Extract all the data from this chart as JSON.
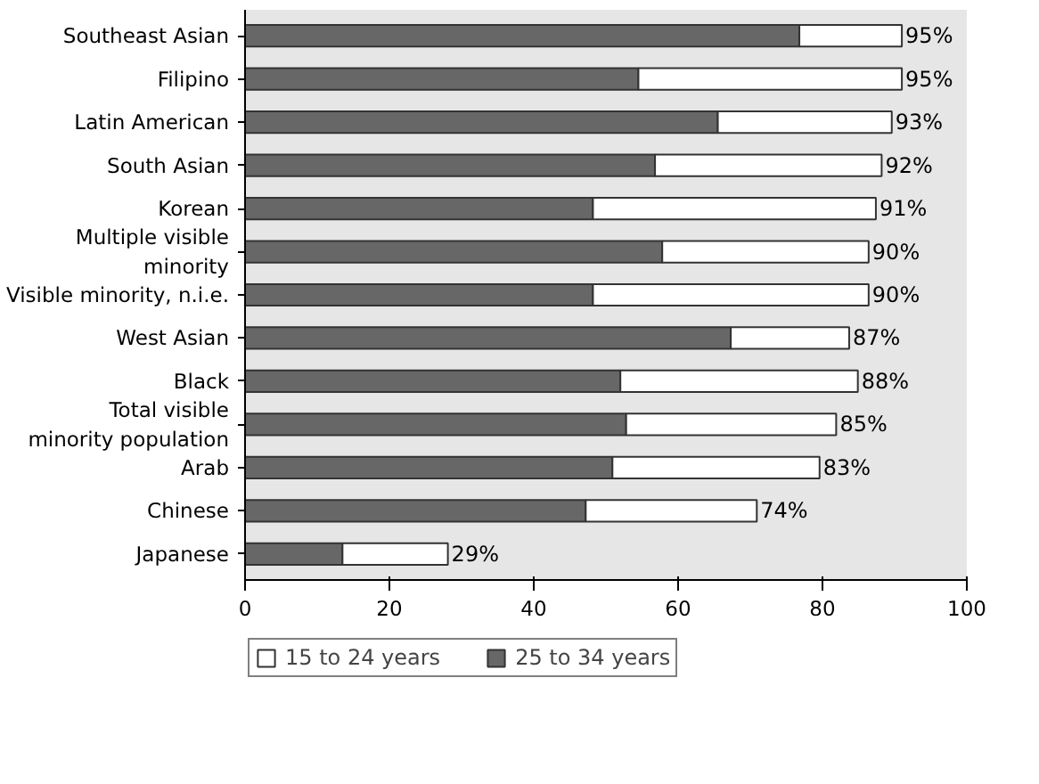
{
  "chart_data": {
    "type": "bar",
    "orientation": "horizontal",
    "stacked": true,
    "categories": [
      "Southeast Asian",
      "Filipino",
      "Latin American",
      "South Asian",
      "Korean",
      "Multiple visible\nminority",
      "Visible minority, n.i.e.",
      "West Asian",
      "Black",
      "Total visible\nminority population",
      "Arab",
      "Chinese",
      "Japanese"
    ],
    "series": [
      {
        "name": "25 to 34 years",
        "color": "#676767",
        "values": [
          76.8,
          54.5,
          65.5,
          56.8,
          48.2,
          57.8,
          48.2,
          67.3,
          52.0,
          52.8,
          50.9,
          47.2,
          13.5
        ]
      },
      {
        "name": "15 to 24 years",
        "color": "#ffffff",
        "values": [
          14.2,
          36.5,
          24.1,
          31.4,
          39.2,
          28.6,
          38.2,
          16.4,
          32.9,
          29.1,
          28.7,
          23.7,
          14.6
        ]
      }
    ],
    "annotations": [
      {
        "text": "95%",
        "x": 91.0,
        "y": "Southeast Asian"
      },
      {
        "text": "95%",
        "x": 91.0,
        "y": "Filipino"
      },
      {
        "text": "93%",
        "x": 89.6,
        "y": "Latin American"
      },
      {
        "text": "92%",
        "x": 88.2,
        "y": "South Asian"
      },
      {
        "text": "91%",
        "x": 87.4,
        "y": "Korean"
      },
      {
        "text": "90%",
        "x": 86.4,
        "y": "Multiple visible\nminority"
      },
      {
        "text": "90%",
        "x": 86.4,
        "y": "Visible minority, n.i.e."
      },
      {
        "text": "87%",
        "x": 83.7,
        "y": "West Asian"
      },
      {
        "text": "88%",
        "x": 84.9,
        "y": "Black"
      },
      {
        "text": "85%",
        "x": 81.9,
        "y": "Total visible\nminority population"
      },
      {
        "text": "83%",
        "x": 79.6,
        "y": "Arab"
      },
      {
        "text": "74%",
        "x": 70.9,
        "y": "Chinese"
      },
      {
        "text": "29%",
        "x": 28.1,
        "y": "Japanese"
      }
    ],
    "xlim": [
      0,
      100
    ],
    "xticks": [
      0,
      20,
      40,
      60,
      80,
      100
    ],
    "grid": false,
    "legend": "bottom"
  }
}
